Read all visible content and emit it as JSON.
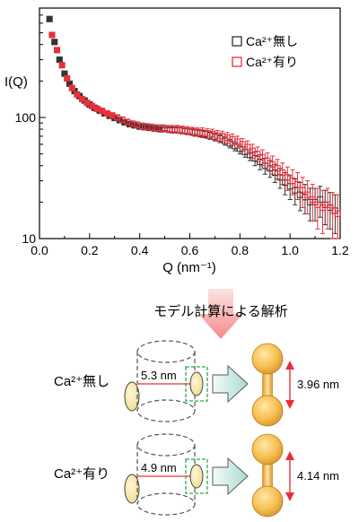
{
  "chart_data": {
    "type": "scatter",
    "xlabel": "Q (nm⁻¹)",
    "ylabel": "I(Q)",
    "xlim": [
      0.0,
      1.2
    ],
    "ylim": [
      10,
      800
    ],
    "yscale": "log",
    "x_ticks": [
      "0.0",
      "0.2",
      "0.4",
      "0.6",
      "0.8",
      "1.0",
      "1.2"
    ],
    "x_tick_values": [
      0.0,
      0.2,
      0.4,
      0.6,
      0.8,
      1.0,
      1.2
    ],
    "y_ticks": [
      "10",
      "100"
    ],
    "y_tick_values": [
      10,
      100
    ],
    "legend_position": "top-right",
    "series": [
      {
        "name": "Ca²⁺無し",
        "color": "#333333",
        "marker": "square",
        "x": [
          0.04,
          0.06,
          0.08,
          0.1,
          0.12,
          0.14,
          0.16,
          0.18,
          0.2,
          0.22,
          0.24,
          0.26,
          0.28,
          0.3,
          0.32,
          0.34,
          0.36,
          0.38,
          0.4,
          0.42,
          0.44,
          0.46,
          0.48,
          0.5,
          0.52,
          0.54,
          0.56,
          0.58,
          0.6,
          0.62,
          0.64,
          0.66,
          0.68,
          0.7,
          0.72,
          0.74,
          0.76,
          0.78,
          0.8,
          0.82,
          0.84,
          0.86,
          0.88,
          0.9,
          0.92,
          0.94,
          0.96,
          0.98,
          1.0,
          1.02,
          1.04,
          1.06,
          1.08,
          1.1,
          1.12,
          1.14,
          1.16,
          1.18
        ],
        "y": [
          650,
          420,
          300,
          230,
          190,
          165,
          150,
          138,
          128,
          120,
          114,
          108,
          103,
          99,
          95,
          91,
          88,
          86,
          84,
          83,
          82,
          81,
          80,
          80,
          79,
          79,
          78,
          77,
          76,
          75,
          74,
          73,
          71,
          69,
          67,
          64,
          61,
          58,
          55,
          52,
          49,
          46,
          43,
          40,
          38,
          35,
          32,
          29,
          27,
          25,
          23,
          22,
          20,
          20,
          21,
          19,
          18,
          17
        ],
        "err": [
          0,
          0,
          0,
          0,
          0,
          0,
          0,
          0,
          0,
          0,
          0,
          0,
          0,
          0,
          0,
          0,
          0,
          0,
          0,
          0,
          0,
          0,
          0,
          2,
          3,
          3,
          4,
          4,
          4,
          5,
          5,
          5,
          5,
          5,
          5,
          5,
          5,
          5,
          5,
          5,
          5,
          6,
          6,
          6,
          6,
          6,
          6,
          6,
          6,
          6,
          6,
          6,
          6,
          6,
          6,
          6,
          6,
          6
        ]
      },
      {
        "name": "Ca²⁺有り",
        "color": "#e8303a",
        "marker": "square",
        "x": [
          0.05,
          0.07,
          0.09,
          0.11,
          0.13,
          0.15,
          0.17,
          0.19,
          0.21,
          0.23,
          0.25,
          0.27,
          0.29,
          0.31,
          0.33,
          0.35,
          0.37,
          0.39,
          0.41,
          0.43,
          0.45,
          0.47,
          0.49,
          0.51,
          0.53,
          0.55,
          0.57,
          0.59,
          0.61,
          0.63,
          0.65,
          0.67,
          0.69,
          0.71,
          0.73,
          0.75,
          0.77,
          0.79,
          0.81,
          0.83,
          0.85,
          0.87,
          0.89,
          0.91,
          0.93,
          0.95,
          0.97,
          0.99,
          1.01,
          1.03,
          1.05,
          1.07,
          1.09,
          1.11,
          1.13,
          1.15,
          1.17,
          1.19
        ],
        "y": [
          480,
          360,
          270,
          210,
          175,
          155,
          142,
          132,
          124,
          118,
          113,
          108,
          104,
          100,
          96,
          92,
          89,
          87,
          85,
          84,
          83,
          82,
          82,
          81,
          80,
          80,
          79,
          78,
          77,
          76,
          75,
          74,
          73,
          71,
          70,
          68,
          66,
          63,
          60,
          57,
          53,
          50,
          47,
          44,
          41,
          38,
          35,
          32,
          30,
          28,
          25,
          23,
          21,
          19,
          18,
          19,
          17,
          16
        ],
        "err": [
          0,
          0,
          0,
          0,
          0,
          0,
          0,
          0,
          0,
          0,
          0,
          0,
          3,
          4,
          4,
          4,
          4,
          5,
          5,
          5,
          5,
          5,
          5,
          5,
          6,
          6,
          6,
          6,
          6,
          6,
          7,
          7,
          7,
          7,
          7,
          7,
          7,
          7,
          7,
          7,
          7,
          7,
          7,
          7,
          7,
          7,
          7,
          7,
          7,
          7,
          7,
          7,
          7,
          7,
          7,
          7,
          7,
          7
        ]
      }
    ]
  },
  "analysis": {
    "arrow_label": "モデル計算による解析",
    "models": [
      {
        "condition": "Ca²⁺無し",
        "radius_label": "5.3 nm",
        "length_label": "3.96 nm"
      },
      {
        "condition": "Ca²⁺有り",
        "radius_label": "4.9 nm",
        "length_label": "4.14 nm"
      }
    ]
  }
}
